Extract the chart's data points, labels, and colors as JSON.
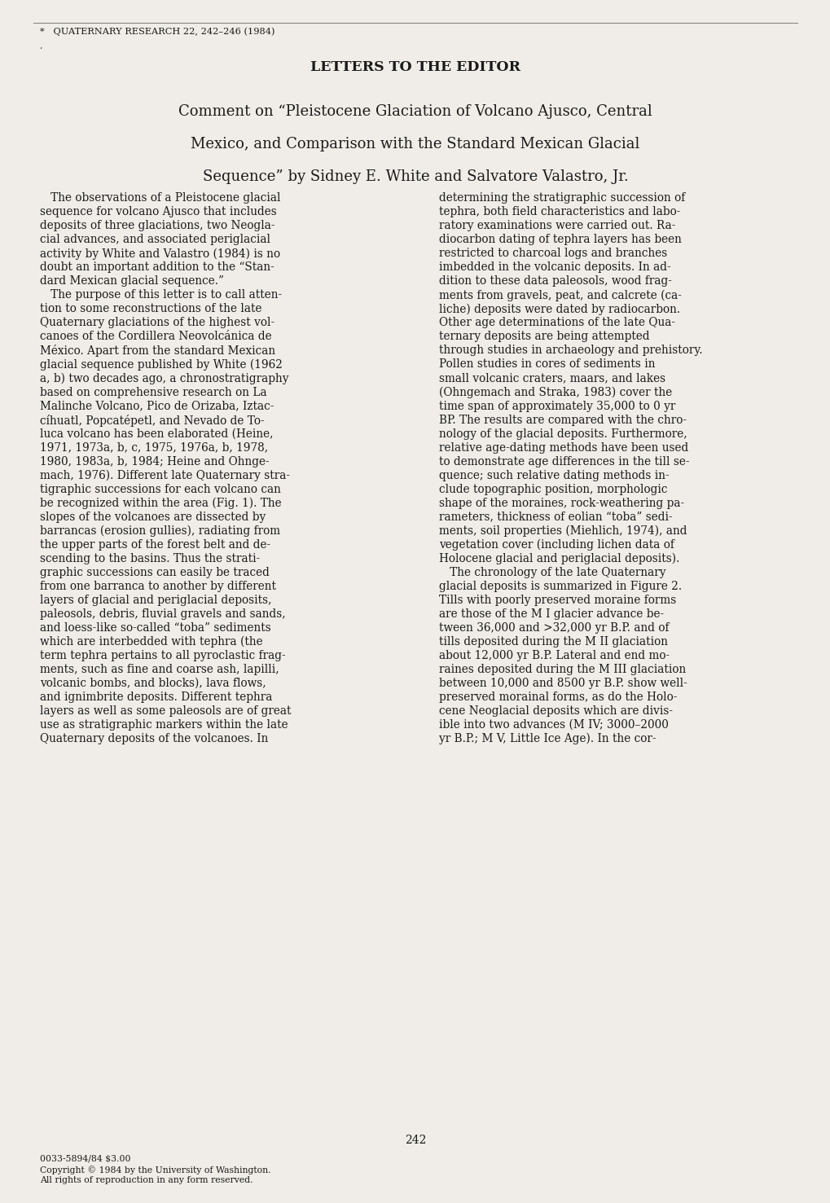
{
  "background_color": "#f0ede8",
  "page_width": 10.2,
  "page_height": 14.77,
  "header_text": "*   QUATERNARY RESEARCH 22, 242–246 (1984)",
  "section_title": "LETTERS TO THE EDITOR",
  "article_title_lines": [
    "Comment on “Pleistocene Glaciation of Volcano Ajusco, Central",
    "Mexico, and Comparison with the Standard Mexican Glacial",
    "Sequence” by Sidney E. White and Salvatore Valastro, Jr."
  ],
  "col1_lines": [
    "   The observations of a Pleistocene glacial",
    "sequence for volcano Ajusco that includes",
    "deposits of three glaciations, two Neogla-",
    "cial advances, and associated periglacial",
    "activity by White and Valastro (1984) is no",
    "doubt an important addition to the “Stan-",
    "dard Mexican glacial sequence.”",
    "   The purpose of this letter is to call atten-",
    "tion to some reconstructions of the late",
    "Quaternary glaciations of the highest vol-",
    "canoes of the Cordillera Neovolcánica de",
    "México. Apart from the standard Mexican",
    "glacial sequence published by White (1962",
    "a, b) two decades ago, a chronostratigraphy",
    "based on comprehensive research on La",
    "Malinche Volcano, Pico de Orizaba, Iztac-",
    "cíhuatl, Popcatépetl, and Nevado de To-",
    "luca volcano has been elaborated (Heine,",
    "1971, 1973a, b, c, 1975, 1976a, b, 1978,",
    "1980, 1983a, b, 1984; Heine and Ohnge-",
    "mach, 1976). Different late Quaternary stra-",
    "tigraphic successions for each volcano can",
    "be recognized within the area (Fig. 1). The",
    "slopes of the volcanoes are dissected by",
    "barrancas (erosion gullies), radiating from",
    "the upper parts of the forest belt and de-",
    "scending to the basins. Thus the strati-",
    "graphic successions can easily be traced",
    "from one barranca to another by different",
    "layers of glacial and periglacial deposits,",
    "paleosols, debris, fluvial gravels and sands,",
    "and loess-like so-called “toba” sediments",
    "which are interbedded with tephra (the",
    "term tephra pertains to all pyroclastic frag-",
    "ments, such as fine and coarse ash, lapilli,",
    "volcanic bombs, and blocks), lava flows,",
    "and ignimbrite deposits. Different tephra",
    "layers as well as some paleosols are of great",
    "use as stratigraphic markers within the late",
    "Quaternary deposits of the volcanoes. In"
  ],
  "col2_lines": [
    "determining the stratigraphic succession of",
    "tephra, both field characteristics and labo-",
    "ratory examinations were carried out. Ra-",
    "diocarbon dating of tephra layers has been",
    "restricted to charcoal logs and branches",
    "imbedded in the volcanic deposits. In ad-",
    "dition to these data paleosols, wood frag-",
    "ments from gravels, peat, and calcrete (ca-",
    "liche) deposits were dated by radiocarbon.",
    "Other age determinations of the late Qua-",
    "ternary deposits are being attempted",
    "through studies in archaeology and prehistory.",
    "Pollen studies in cores of sediments in",
    "small volcanic craters, maars, and lakes",
    "(Ohngemach and Straka, 1983) cover the",
    "time span of approximately 35,000 to 0 yr",
    "BP. The results are compared with the chro-",
    "nology of the glacial deposits. Furthermore,",
    "relative age-dating methods have been used",
    "to demonstrate age differences in the till se-",
    "quence; such relative dating methods in-",
    "clude topographic position, morphologic",
    "shape of the moraines, rock-weathering pa-",
    "rameters, thickness of eolian “toba” sedi-",
    "ments, soil properties (Miehlich, 1974), and",
    "vegetation cover (including lichen data of",
    "Holocene glacial and periglacial deposits).",
    "   The chronology of the late Quaternary",
    "glacial deposits is summarized in Figure 2.",
    "Tills with poorly preserved moraine forms",
    "are those of the M I glacier advance be-",
    "tween 36,000 and >32,000 yr B.P. and of",
    "tills deposited during the M II glaciation",
    "about 12,000 yr B.P. Lateral and end mo-",
    "raines deposited during the M III glaciation",
    "between 10,000 and 8500 yr B.P. show well-",
    "preserved morainal forms, as do the Holo-",
    "cene Neoglacial deposits which are divis-",
    "ible into two advances (M IV; 3000–2000",
    "yr B.P.; M V, Little Ice Age). In the cor-"
  ],
  "footer_page_number": "242",
  "footer_line1": "0033-5894/84 $3.00",
  "footer_line2": "Copyright © 1984 by the University of Washington.",
  "footer_line3": "All rights of reproduction in any form reserved.",
  "top_border_color": "#888888",
  "text_color": "#1a1a1a",
  "header_fontsize": 8.2,
  "section_title_fontsize": 12.5,
  "article_title_fontsize": 13.0,
  "body_fontsize": 9.8,
  "footer_fontsize": 7.8,
  "page_number_fontsize": 10
}
